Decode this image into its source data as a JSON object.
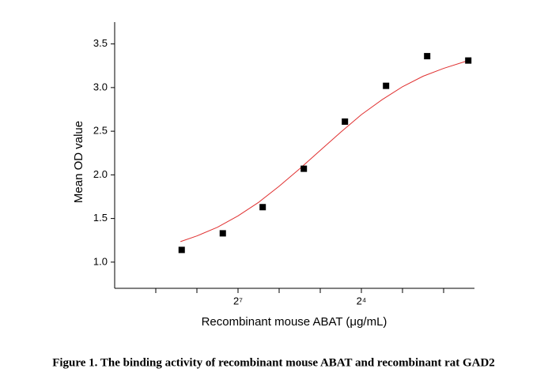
{
  "chart_data": {
    "type": "scatter",
    "caption": "Figure 1. The binding activity of recombinant mouse ABAT and recombinant rat GAD2",
    "xlabel": "Recombinant mouse ABAT (μg/mL)",
    "ylabel": "Mean OD value",
    "color": "#000000",
    "x": [
      1.63,
      2.63,
      3.6,
      4.6,
      5.6,
      6.6,
      7.6,
      8.6
    ],
    "values": [
      1.14,
      1.33,
      1.63,
      2.07,
      2.61,
      3.02,
      3.36,
      3.31
    ],
    "fit": {
      "color": "#e03030",
      "x": [
        1.6,
        2.0,
        2.5,
        3.0,
        3.5,
        4.0,
        4.5,
        5.0,
        5.5,
        6.0,
        6.5,
        7.0,
        7.5,
        8.0,
        8.6
      ],
      "values": [
        1.235,
        1.3,
        1.4,
        1.53,
        1.685,
        1.87,
        2.07,
        2.28,
        2.49,
        2.69,
        2.86,
        3.01,
        3.13,
        3.22,
        3.31
      ]
    },
    "xlim": [
      0,
      8.75
    ],
    "xticks": [
      {
        "value": 3,
        "label": "2⁷"
      },
      {
        "value": 6,
        "label": "2⁴"
      }
    ],
    "x_minor_ticks": [
      1,
      2,
      4,
      5,
      7,
      8
    ],
    "ylim": [
      0.7,
      3.75
    ],
    "yticks": [
      {
        "value": 1,
        "label": "1.0"
      },
      {
        "value": 1.5,
        "label": "1.5"
      },
      {
        "value": 2,
        "label": "2.0"
      },
      {
        "value": 2.5,
        "label": "2.5"
      },
      {
        "value": 3,
        "label": "3.0"
      },
      {
        "value": 3.5,
        "label": "3.5"
      }
    ]
  }
}
